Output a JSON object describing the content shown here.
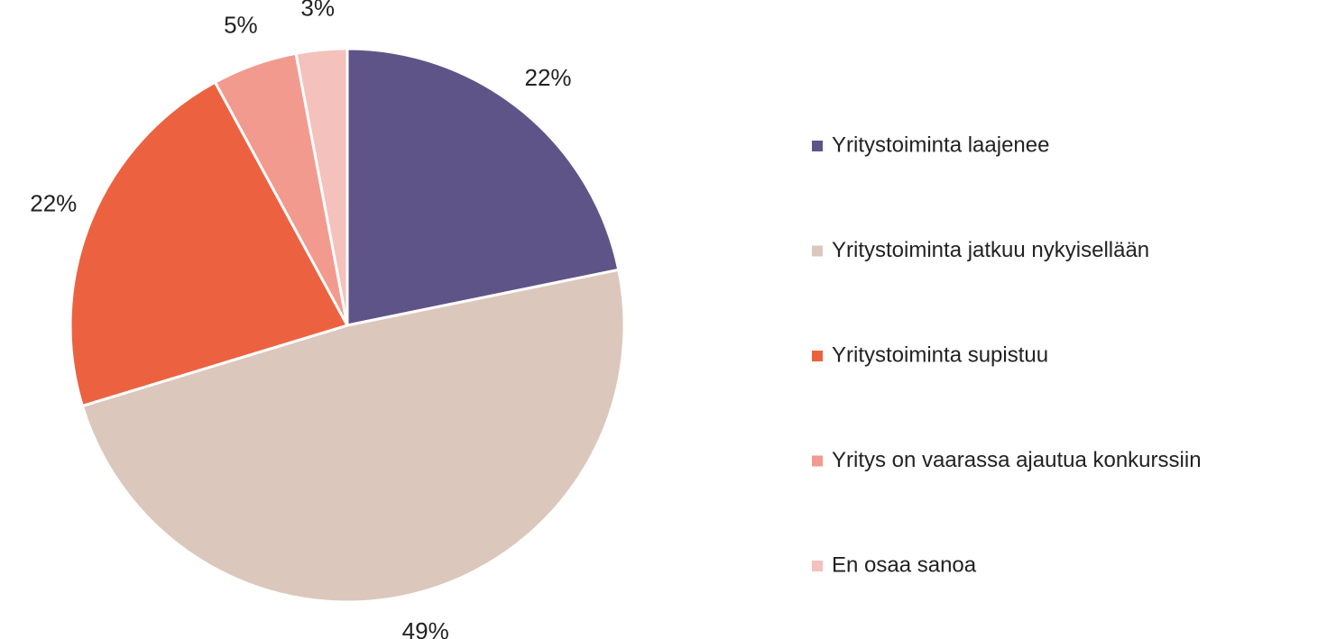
{
  "chart_data": {
    "type": "pie",
    "categories": [
      "Yritystoiminta laajenee",
      "Yritystoiminta jatkuu nykyisellään",
      "Yritystoiminta supistuu",
      "Yritys on vaarassa ajautua konkurssiin",
      "En osaa sanoa"
    ],
    "values": [
      22,
      49,
      22,
      5,
      3
    ],
    "colors": [
      "#5f5488",
      "#dcc7bc",
      "#ec6241",
      "#f29a8e",
      "#f4c1bc"
    ],
    "legend": "right"
  }
}
